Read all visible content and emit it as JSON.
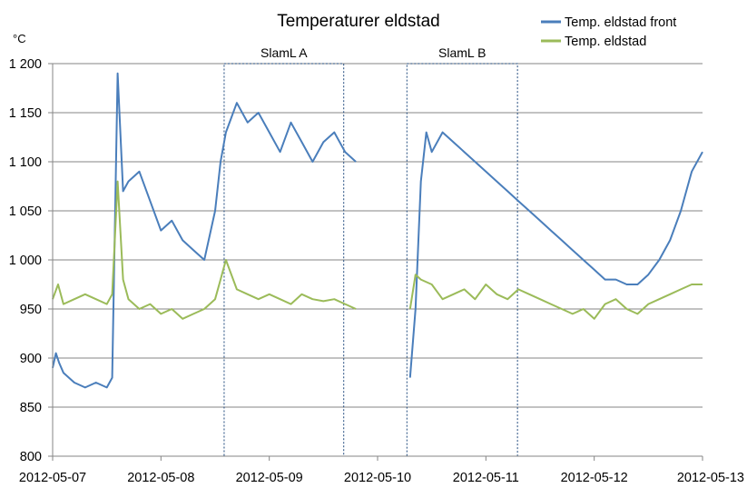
{
  "chart_data": {
    "type": "line",
    "title": "Temperaturer eldstad",
    "ylabel": "°C",
    "xlabel": "",
    "ylim": [
      800,
      1200
    ],
    "yticks": [
      800,
      850,
      900,
      950,
      1000,
      1050,
      1100,
      1150,
      1200
    ],
    "ytick_labels": [
      "800",
      "850",
      "900",
      "950",
      "1 000",
      "1 050",
      "1 100",
      "1 150",
      "1 200"
    ],
    "xlim": [
      "2012-05-07",
      "2012-05-13"
    ],
    "xtick_labels": [
      "2012-05-07",
      "2012-05-08",
      "2012-05-09",
      "2012-05-10",
      "2012-05-11",
      "2012-05-12",
      "2012-05-13"
    ],
    "grid": "horizontal",
    "legend": "top-right",
    "regions": [
      {
        "label": "SlamL A",
        "x_start": "2012-05-08 14:00",
        "x_end": "2012-05-09 16:30",
        "y_range": [
          800,
          1200
        ]
      },
      {
        "label": "SlamL B",
        "x_start": "2012-05-10 06:30",
        "x_end": "2012-05-11 07:00",
        "y_range": [
          800,
          1200
        ]
      }
    ],
    "series": [
      {
        "name": "Temp. eldstad front",
        "color": "#4a7ebb",
        "x_unit": "days after 2012-05-07 00:00",
        "x": [
          0.0,
          0.03,
          0.06,
          0.1,
          0.15,
          0.2,
          0.3,
          0.4,
          0.5,
          0.55,
          0.6,
          0.65,
          0.7,
          0.8,
          0.9,
          1.0,
          1.1,
          1.2,
          1.3,
          1.4,
          1.5,
          1.55,
          1.6,
          1.7,
          1.8,
          1.9,
          2.0,
          2.1,
          2.2,
          2.3,
          2.4,
          2.5,
          2.6,
          2.7,
          2.8,
          3.3,
          3.35,
          3.4,
          3.45,
          3.5,
          3.6,
          3.7,
          3.8,
          3.9,
          4.0,
          4.1,
          4.2,
          4.3,
          4.4,
          4.5,
          4.6,
          4.7,
          4.8,
          4.9,
          5.0,
          5.1,
          5.2,
          5.3,
          5.4,
          5.5,
          5.6,
          5.7,
          5.8,
          5.9,
          6.0
        ],
        "y": [
          890,
          905,
          895,
          885,
          880,
          875,
          870,
          875,
          870,
          880,
          1190,
          1070,
          1080,
          1090,
          1060,
          1030,
          1040,
          1020,
          1010,
          1000,
          1050,
          1100,
          1130,
          1160,
          1140,
          1150,
          1130,
          1110,
          1140,
          1120,
          1100,
          1120,
          1130,
          1110,
          1100,
          880,
          950,
          1080,
          1130,
          1110,
          1130,
          1120,
          1110,
          1100,
          1090,
          1080,
          1070,
          1060,
          1050,
          1040,
          1030,
          1020,
          1010,
          1000,
          990,
          980,
          980,
          975,
          975,
          985,
          1000,
          1020,
          1050,
          1090,
          1110
        ],
        "gap_after_x": [
          2.8
        ]
      },
      {
        "name": "Temp. eldstad",
        "color": "#9bbb59",
        "x_unit": "days after 2012-05-07 00:00",
        "x": [
          0.0,
          0.05,
          0.1,
          0.2,
          0.3,
          0.4,
          0.5,
          0.55,
          0.6,
          0.65,
          0.7,
          0.8,
          0.9,
          1.0,
          1.1,
          1.2,
          1.3,
          1.4,
          1.5,
          1.55,
          1.6,
          1.7,
          1.8,
          1.9,
          2.0,
          2.1,
          2.2,
          2.3,
          2.4,
          2.5,
          2.6,
          2.7,
          2.8,
          3.3,
          3.35,
          3.4,
          3.5,
          3.6,
          3.7,
          3.8,
          3.9,
          4.0,
          4.1,
          4.2,
          4.3,
          4.4,
          4.5,
          4.6,
          4.7,
          4.8,
          4.9,
          5.0,
          5.1,
          5.2,
          5.3,
          5.4,
          5.5,
          5.6,
          5.7,
          5.8,
          5.9,
          6.0
        ],
        "y": [
          960,
          975,
          955,
          960,
          965,
          960,
          955,
          965,
          1080,
          980,
          960,
          950,
          955,
          945,
          950,
          940,
          945,
          950,
          960,
          980,
          1000,
          970,
          965,
          960,
          965,
          960,
          955,
          965,
          960,
          958,
          960,
          955,
          950,
          950,
          985,
          980,
          975,
          960,
          965,
          970,
          960,
          975,
          965,
          960,
          970,
          965,
          960,
          955,
          950,
          945,
          950,
          940,
          955,
          960,
          950,
          945,
          955,
          960,
          965,
          970,
          975,
          975
        ],
        "gap_after_x": [
          2.8
        ]
      }
    ]
  }
}
